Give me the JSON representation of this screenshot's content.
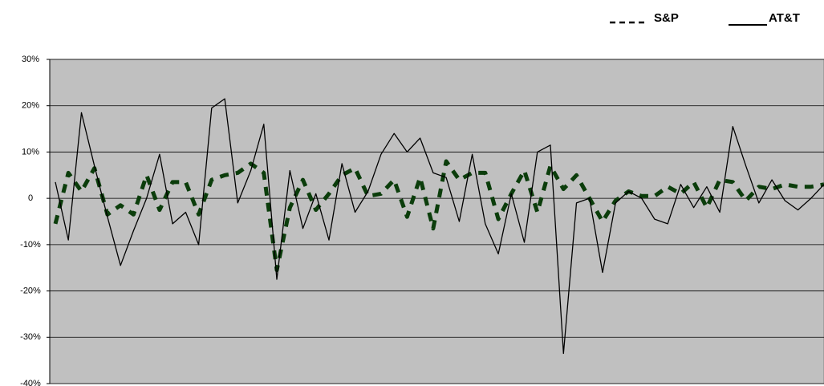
{
  "chart_data": {
    "type": "line",
    "series": [
      {
        "name": "S&P",
        "color": "#0b3d0b",
        "dash": true,
        "values": [
          -5.5,
          5.5,
          1.5,
          6.5,
          -3.5,
          -1.5,
          -3.5,
          5,
          -2.5,
          3.5,
          3.5,
          -3.5,
          4,
          5,
          5.5,
          7.5,
          5.5,
          -15.5,
          -2,
          4,
          -2.5,
          1,
          5,
          6.5,
          0.5,
          1,
          4,
          -4,
          4.5,
          -6.5,
          8,
          4,
          5.5,
          5.5,
          -4.5,
          1,
          6,
          -3,
          7,
          2,
          5,
          0,
          -5,
          -0.5,
          1.5,
          0.5,
          0.5,
          2.5,
          1,
          3.5,
          -2,
          4,
          3.5,
          -0.5,
          2.5,
          2,
          3,
          2.5,
          2.5,
          3
        ]
      },
      {
        "name": "AT&T",
        "color": "#000000",
        "dash": false,
        "values": [
          3.5,
          -9,
          18.5,
          7,
          -4,
          -14.5,
          -7,
          0,
          9.5,
          -5.5,
          -3,
          -10,
          19.5,
          21.5,
          -1,
          6,
          16,
          -17.5,
          6,
          -6.5,
          1,
          -9,
          7.5,
          -3,
          1.5,
          9.5,
          14,
          10,
          13,
          5.5,
          4.5,
          -5,
          9.5,
          -5.5,
          -12,
          1,
          -9.5,
          10,
          11.5,
          -33.5,
          -1,
          0,
          -16,
          -1,
          1.5,
          0,
          -4.5,
          -5.5,
          3,
          -2,
          2.5,
          -3,
          15.5,
          7,
          -1,
          4,
          -0.5,
          -2.5,
          0,
          3
        ]
      }
    ],
    "ylim": [
      -40,
      30
    ],
    "yticks": [
      {
        "value": -40,
        "label": "-40%"
      },
      {
        "value": -30,
        "label": "-30%"
      },
      {
        "value": -20,
        "label": "-20%"
      },
      {
        "value": -10,
        "label": "-10%"
      },
      0,
      {
        "value": 10,
        "label": "10%"
      },
      {
        "value": 20,
        "label": "20%"
      },
      {
        "value": 30,
        "label": "30%"
      }
    ],
    "grid": true,
    "legend": "top-right",
    "background": "#c0c0c0"
  }
}
